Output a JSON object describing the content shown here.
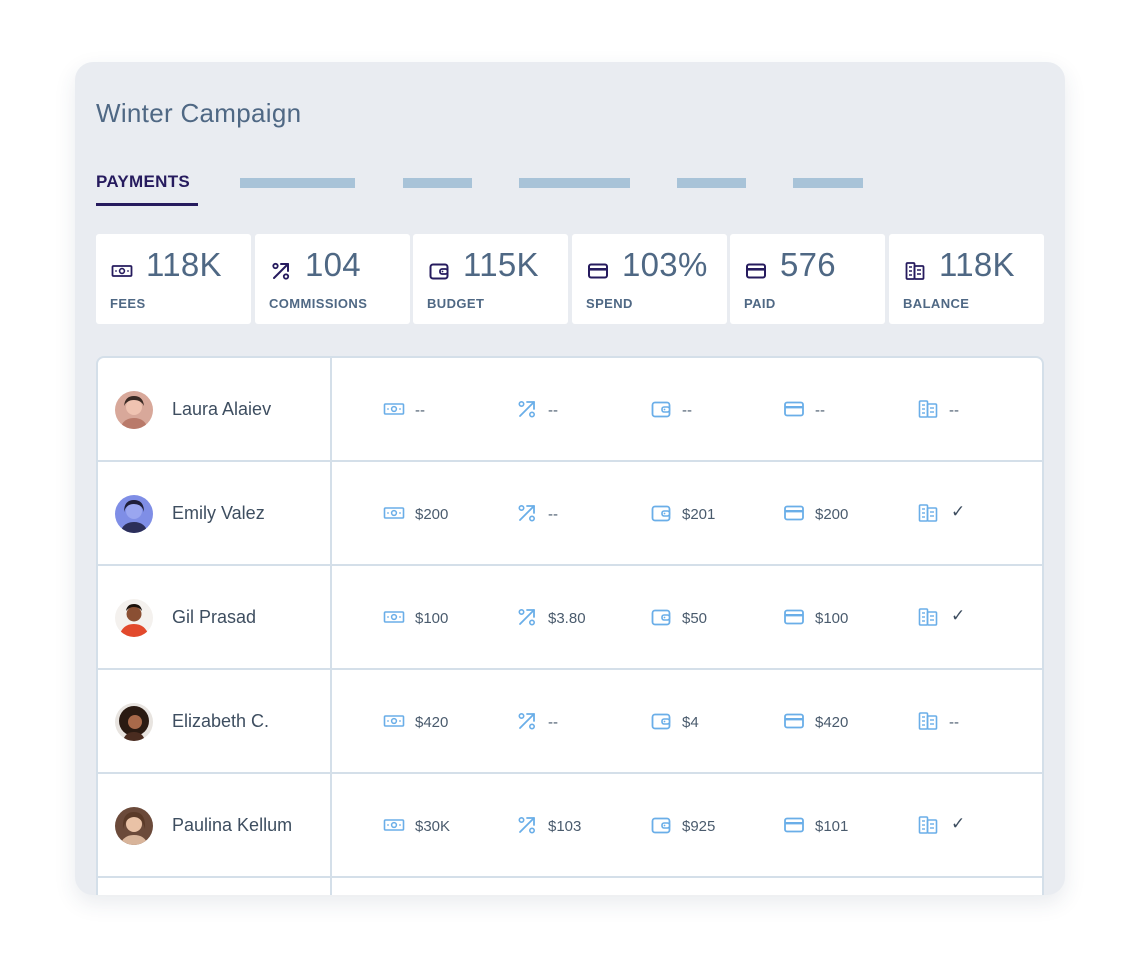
{
  "title": "Winter Campaign",
  "tabs": {
    "active_label": "PAYMENTS"
  },
  "colors": {
    "accent": "#261b5e",
    "text": "#4f6884",
    "icon_blue": "#6aaee8",
    "background": "#e9ecf1"
  },
  "stats": [
    {
      "icon": "cash-icon",
      "value": "118K",
      "label": "FEES"
    },
    {
      "icon": "percent-icon",
      "value": "104",
      "label": "COMMISSIONS"
    },
    {
      "icon": "wallet-icon",
      "value": "115K",
      "label": "BUDGET"
    },
    {
      "icon": "card-icon",
      "value": "103%",
      "label": "SPEND"
    },
    {
      "icon": "card-icon",
      "value": "576",
      "label": "PAID"
    },
    {
      "icon": "ledger-icon",
      "value": "118K",
      "label": "BALANCE"
    }
  ],
  "rows": [
    {
      "name": "Laura Alaiev",
      "fees": "--",
      "commissions": "--",
      "budget": "--",
      "spend": "--",
      "balance": "--"
    },
    {
      "name": "Emily Valez",
      "fees": "$200",
      "commissions": "--",
      "budget": "$201",
      "spend": "$200",
      "balance": "✓"
    },
    {
      "name": "Gil Prasad",
      "fees": "$100",
      "commissions": "$3.80",
      "budget": "$50",
      "spend": "$100",
      "balance": "✓"
    },
    {
      "name": "Elizabeth C.",
      "fees": "$420",
      "commissions": "--",
      "budget": "$4",
      "spend": "$420",
      "balance": "--"
    },
    {
      "name": "Paulina Kellum",
      "fees": "$30K",
      "commissions": "$103",
      "budget": "$925",
      "spend": "$101",
      "balance": "✓"
    }
  ]
}
